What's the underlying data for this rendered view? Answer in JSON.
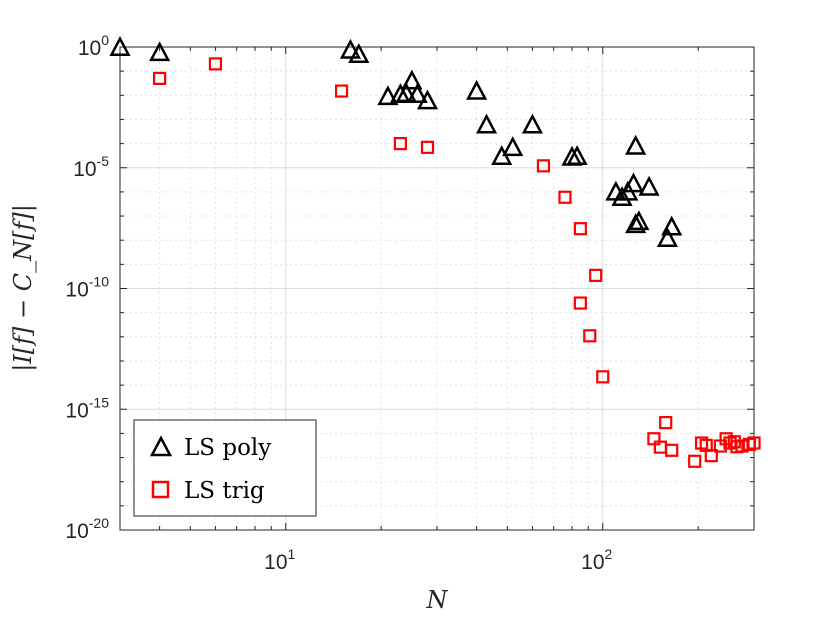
{
  "chart_data": {
    "type": "scatter",
    "xscale": "log",
    "yscale": "log",
    "xlim": [
      3,
      300
    ],
    "ylim": [
      1e-20,
      1
    ],
    "grid": true,
    "minor_grid": true,
    "xlabel": "N",
    "ylabel": "|I[f] − C_N[f]|",
    "xticks": [
      {
        "value": 10,
        "base": "10",
        "exp": "1"
      },
      {
        "value": 100,
        "base": "10",
        "exp": "2"
      }
    ],
    "yticks": [
      {
        "value": 1,
        "base": "10",
        "exp": "0"
      },
      {
        "value": 1e-05,
        "base": "10",
        "exp": "-5"
      },
      {
        "value": 1e-10,
        "base": "10",
        "exp": "-10"
      },
      {
        "value": 1e-15,
        "base": "10",
        "exp": "-15"
      },
      {
        "value": 1e-20,
        "base": "10",
        "exp": "-20"
      }
    ],
    "legend_position": "bottom-left",
    "series": [
      {
        "name": "LS poly",
        "marker": "triangle",
        "color": "#000000",
        "points": [
          [
            3,
            0.98
          ],
          [
            4,
            0.6
          ],
          [
            16,
            0.75
          ],
          [
            17,
            0.5
          ],
          [
            21,
            0.009
          ],
          [
            23,
            0.011
          ],
          [
            24,
            0.012
          ],
          [
            25,
            0.04
          ],
          [
            26,
            0.011
          ],
          [
            28,
            0.006
          ],
          [
            40,
            0.015
          ],
          [
            43,
            0.0006
          ],
          [
            48,
            3e-05
          ],
          [
            52,
            7e-05
          ],
          [
            60,
            0.0006
          ],
          [
            80,
            2.8e-05
          ],
          [
            83,
            3e-05
          ],
          [
            110,
            1e-06
          ],
          [
            115,
            6e-07
          ],
          [
            120,
            1e-06
          ],
          [
            125,
            2.2e-06
          ],
          [
            127,
            8e-05
          ],
          [
            127,
            4.5e-08
          ],
          [
            130,
            6e-08
          ],
          [
            140,
            1.6e-06
          ],
          [
            160,
            1.2e-08
          ],
          [
            165,
            3.6e-08
          ]
        ]
      },
      {
        "name": "LS trig",
        "marker": "square",
        "color": "#ff0000",
        "points": [
          [
            4,
            0.05
          ],
          [
            6,
            0.2
          ],
          [
            15,
            0.015
          ],
          [
            23,
            0.0001
          ],
          [
            28,
            7e-05
          ],
          [
            65,
            1.2e-05
          ],
          [
            76,
            6e-07
          ],
          [
            85,
            3e-08
          ],
          [
            95,
            3.5e-10
          ],
          [
            85,
            2.5e-11
          ],
          [
            91,
            1.1e-12
          ],
          [
            100,
            2.2e-14
          ],
          [
            158,
            2.8e-16
          ],
          [
            145,
            6e-17
          ],
          [
            152,
            2.7e-17
          ],
          [
            165,
            2e-17
          ],
          [
            195,
            7e-18
          ],
          [
            205,
            4e-17
          ],
          [
            212,
            3.2e-17
          ],
          [
            220,
            1.2e-17
          ],
          [
            235,
            3e-17
          ],
          [
            245,
            6e-17
          ],
          [
            252,
            4e-17
          ],
          [
            260,
            4.5e-17
          ],
          [
            265,
            2.8e-17
          ],
          [
            275,
            3e-17
          ],
          [
            290,
            3.5e-17
          ],
          [
            300,
            4e-17
          ]
        ]
      }
    ]
  }
}
